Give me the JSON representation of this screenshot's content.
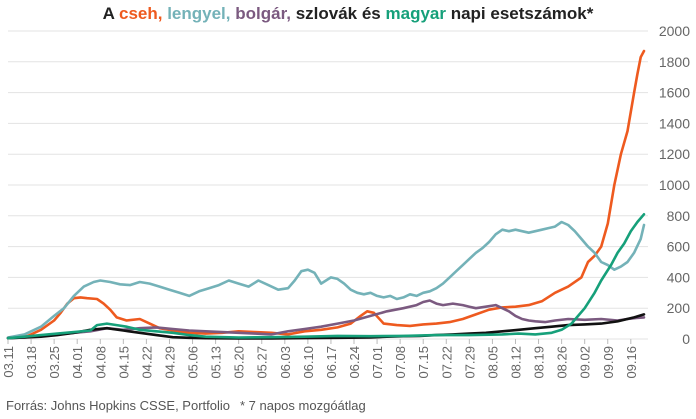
{
  "title": {
    "parts": [
      {
        "text": "A ",
        "color": "#222222"
      },
      {
        "text": "cseh,",
        "color": "#ee5a1f"
      },
      {
        "text": " ",
        "color": "#222222"
      },
      {
        "text": "lengyel,",
        "color": "#74b2b8"
      },
      {
        "text": " ",
        "color": "#222222"
      },
      {
        "text": "bolgár,",
        "color": "#7b5a80"
      },
      {
        "text": " szlovák és ",
        "color": "#222222"
      },
      {
        "text": "magyar",
        "color": "#16a07a"
      },
      {
        "text": " napi esetszámok*",
        "color": "#222222"
      }
    ]
  },
  "footer": {
    "source": "Forrás: Johns Hopkins CSSE, Portfolio",
    "note": "* 7 napos mozgóátlag"
  },
  "chart_data": {
    "type": "line",
    "title": "A cseh, lengyel, bolgár, szlovák és magyar napi esetszámok*",
    "ylim": [
      0,
      2000
    ],
    "yticks": [
      0,
      200,
      400,
      600,
      800,
      1000,
      1200,
      1400,
      1600,
      1800,
      2000
    ],
    "y_axis_side": "right",
    "grid": "horizontal",
    "x_index_range": [
      0,
      193
    ],
    "x_tick_labels": [
      "03.11",
      "03.18",
      "03.25",
      "04.01",
      "04.08",
      "04.15",
      "04.22",
      "04.29",
      "05.06",
      "05.13",
      "05.20",
      "05.27",
      "06.03",
      "06.10",
      "06.17",
      "06.24",
      "07.01",
      "07.08",
      "07.15",
      "07.22",
      "07.29",
      "08.05",
      "08.12",
      "08.19",
      "08.26",
      "09.02",
      "09.09",
      "09.16"
    ],
    "x_tick_index": [
      0,
      7,
      14,
      21,
      28,
      35,
      42,
      49,
      56,
      63,
      70,
      77,
      84,
      91,
      98,
      105,
      112,
      119,
      126,
      133,
      140,
      147,
      154,
      161,
      168,
      175,
      182,
      189
    ],
    "series": [
      {
        "name": "cseh",
        "color": "#ee5a1f",
        "points": [
          [
            0,
            5
          ],
          [
            6,
            20
          ],
          [
            10,
            60
          ],
          [
            14,
            120
          ],
          [
            16,
            170
          ],
          [
            18,
            230
          ],
          [
            20,
            265
          ],
          [
            22,
            270
          ],
          [
            24,
            265
          ],
          [
            27,
            260
          ],
          [
            29,
            230
          ],
          [
            31,
            190
          ],
          [
            33,
            140
          ],
          [
            36,
            120
          ],
          [
            40,
            130
          ],
          [
            43,
            100
          ],
          [
            46,
            70
          ],
          [
            50,
            55
          ],
          [
            55,
            40
          ],
          [
            60,
            35
          ],
          [
            65,
            40
          ],
          [
            70,
            50
          ],
          [
            75,
            45
          ],
          [
            80,
            40
          ],
          [
            85,
            30
          ],
          [
            90,
            50
          ],
          [
            95,
            60
          ],
          [
            100,
            75
          ],
          [
            104,
            100
          ],
          [
            107,
            150
          ],
          [
            109,
            180
          ],
          [
            111,
            170
          ],
          [
            114,
            100
          ],
          [
            118,
            90
          ],
          [
            122,
            85
          ],
          [
            126,
            95
          ],
          [
            130,
            100
          ],
          [
            134,
            110
          ],
          [
            138,
            130
          ],
          [
            142,
            160
          ],
          [
            146,
            190
          ],
          [
            150,
            205
          ],
          [
            154,
            210
          ],
          [
            158,
            220
          ],
          [
            162,
            245
          ],
          [
            166,
            300
          ],
          [
            170,
            340
          ],
          [
            174,
            400
          ],
          [
            176,
            500
          ],
          [
            178,
            540
          ],
          [
            180,
            600
          ],
          [
            182,
            750
          ],
          [
            184,
            1000
          ],
          [
            186,
            1200
          ],
          [
            188,
            1350
          ],
          [
            190,
            1600
          ],
          [
            191,
            1720
          ],
          [
            192,
            1830
          ],
          [
            193,
            1870
          ]
        ]
      },
      {
        "name": "lengyel",
        "color": "#74b2b8",
        "points": [
          [
            0,
            10
          ],
          [
            5,
            30
          ],
          [
            10,
            80
          ],
          [
            14,
            150
          ],
          [
            17,
            200
          ],
          [
            20,
            280
          ],
          [
            23,
            340
          ],
          [
            26,
            370
          ],
          [
            28,
            380
          ],
          [
            31,
            370
          ],
          [
            34,
            355
          ],
          [
            37,
            350
          ],
          [
            40,
            370
          ],
          [
            43,
            360
          ],
          [
            46,
            340
          ],
          [
            49,
            320
          ],
          [
            52,
            300
          ],
          [
            55,
            280
          ],
          [
            58,
            310
          ],
          [
            61,
            330
          ],
          [
            64,
            350
          ],
          [
            67,
            380
          ],
          [
            70,
            360
          ],
          [
            73,
            340
          ],
          [
            76,
            380
          ],
          [
            79,
            350
          ],
          [
            82,
            320
          ],
          [
            85,
            330
          ],
          [
            87,
            380
          ],
          [
            89,
            440
          ],
          [
            91,
            450
          ],
          [
            93,
            430
          ],
          [
            95,
            360
          ],
          [
            98,
            400
          ],
          [
            100,
            390
          ],
          [
            102,
            360
          ],
          [
            104,
            320
          ],
          [
            106,
            300
          ],
          [
            108,
            290
          ],
          [
            110,
            300
          ],
          [
            112,
            280
          ],
          [
            114,
            270
          ],
          [
            116,
            280
          ],
          [
            118,
            260
          ],
          [
            120,
            270
          ],
          [
            122,
            290
          ],
          [
            124,
            280
          ],
          [
            126,
            300
          ],
          [
            128,
            310
          ],
          [
            130,
            330
          ],
          [
            132,
            360
          ],
          [
            134,
            400
          ],
          [
            136,
            440
          ],
          [
            138,
            480
          ],
          [
            140,
            520
          ],
          [
            142,
            560
          ],
          [
            144,
            590
          ],
          [
            146,
            630
          ],
          [
            148,
            680
          ],
          [
            150,
            710
          ],
          [
            152,
            700
          ],
          [
            154,
            710
          ],
          [
            156,
            700
          ],
          [
            158,
            690
          ],
          [
            160,
            700
          ],
          [
            162,
            710
          ],
          [
            164,
            720
          ],
          [
            166,
            730
          ],
          [
            168,
            760
          ],
          [
            170,
            740
          ],
          [
            172,
            700
          ],
          [
            174,
            650
          ],
          [
            176,
            600
          ],
          [
            178,
            560
          ],
          [
            180,
            500
          ],
          [
            182,
            480
          ],
          [
            184,
            450
          ],
          [
            186,
            470
          ],
          [
            188,
            500
          ],
          [
            190,
            560
          ],
          [
            192,
            650
          ],
          [
            193,
            740
          ]
        ]
      },
      {
        "name": "bolgár",
        "color": "#7b5a80",
        "points": [
          [
            0,
            5
          ],
          [
            5,
            10
          ],
          [
            10,
            20
          ],
          [
            15,
            30
          ],
          [
            20,
            40
          ],
          [
            25,
            50
          ],
          [
            30,
            70
          ],
          [
            35,
            60
          ],
          [
            40,
            70
          ],
          [
            45,
            75
          ],
          [
            50,
            65
          ],
          [
            55,
            55
          ],
          [
            60,
            50
          ],
          [
            65,
            45
          ],
          [
            70,
            40
          ],
          [
            75,
            35
          ],
          [
            80,
            30
          ],
          [
            85,
            50
          ],
          [
            90,
            65
          ],
          [
            95,
            80
          ],
          [
            100,
            100
          ],
          [
            105,
            120
          ],
          [
            110,
            150
          ],
          [
            115,
            180
          ],
          [
            120,
            200
          ],
          [
            124,
            220
          ],
          [
            126,
            240
          ],
          [
            128,
            250
          ],
          [
            130,
            230
          ],
          [
            132,
            220
          ],
          [
            135,
            230
          ],
          [
            138,
            220
          ],
          [
            140,
            210
          ],
          [
            142,
            200
          ],
          [
            145,
            210
          ],
          [
            148,
            220
          ],
          [
            150,
            200
          ],
          [
            152,
            180
          ],
          [
            154,
            150
          ],
          [
            156,
            130
          ],
          [
            158,
            120
          ],
          [
            160,
            115
          ],
          [
            163,
            110
          ],
          [
            166,
            120
          ],
          [
            170,
            130
          ],
          [
            175,
            125
          ],
          [
            180,
            130
          ],
          [
            185,
            120
          ],
          [
            188,
            130
          ],
          [
            190,
            135
          ],
          [
            193,
            140
          ]
        ]
      },
      {
        "name": "szlovák",
        "color": "#111111",
        "points": [
          [
            0,
            5
          ],
          [
            5,
            10
          ],
          [
            10,
            15
          ],
          [
            15,
            25
          ],
          [
            20,
            40
          ],
          [
            25,
            60
          ],
          [
            30,
            70
          ],
          [
            35,
            55
          ],
          [
            40,
            40
          ],
          [
            45,
            25
          ],
          [
            50,
            12
          ],
          [
            55,
            8
          ],
          [
            60,
            5
          ],
          [
            70,
            3
          ],
          [
            80,
            4
          ],
          [
            90,
            6
          ],
          [
            100,
            8
          ],
          [
            110,
            10
          ],
          [
            115,
            15
          ],
          [
            120,
            18
          ],
          [
            125,
            20
          ],
          [
            130,
            25
          ],
          [
            135,
            30
          ],
          [
            140,
            35
          ],
          [
            145,
            40
          ],
          [
            150,
            50
          ],
          [
            155,
            60
          ],
          [
            160,
            70
          ],
          [
            165,
            80
          ],
          [
            170,
            90
          ],
          [
            175,
            95
          ],
          [
            180,
            100
          ],
          [
            185,
            115
          ],
          [
            190,
            140
          ],
          [
            193,
            160
          ]
        ]
      },
      {
        "name": "magyar",
        "color": "#16a07a",
        "points": [
          [
            0,
            5
          ],
          [
            5,
            15
          ],
          [
            10,
            25
          ],
          [
            15,
            35
          ],
          [
            20,
            45
          ],
          [
            25,
            55
          ],
          [
            27,
            90
          ],
          [
            30,
            100
          ],
          [
            33,
            90
          ],
          [
            36,
            80
          ],
          [
            40,
            60
          ],
          [
            45,
            50
          ],
          [
            50,
            40
          ],
          [
            55,
            25
          ],
          [
            60,
            15
          ],
          [
            70,
            10
          ],
          [
            80,
            12
          ],
          [
            90,
            15
          ],
          [
            100,
            20
          ],
          [
            110,
            18
          ],
          [
            120,
            20
          ],
          [
            130,
            25
          ],
          [
            140,
            25
          ],
          [
            150,
            30
          ],
          [
            155,
            35
          ],
          [
            160,
            30
          ],
          [
            165,
            40
          ],
          [
            168,
            60
          ],
          [
            171,
            100
          ],
          [
            173,
            150
          ],
          [
            175,
            200
          ],
          [
            178,
            300
          ],
          [
            180,
            380
          ],
          [
            183,
            480
          ],
          [
            185,
            560
          ],
          [
            187,
            620
          ],
          [
            189,
            700
          ],
          [
            191,
            760
          ],
          [
            193,
            810
          ]
        ]
      }
    ]
  }
}
